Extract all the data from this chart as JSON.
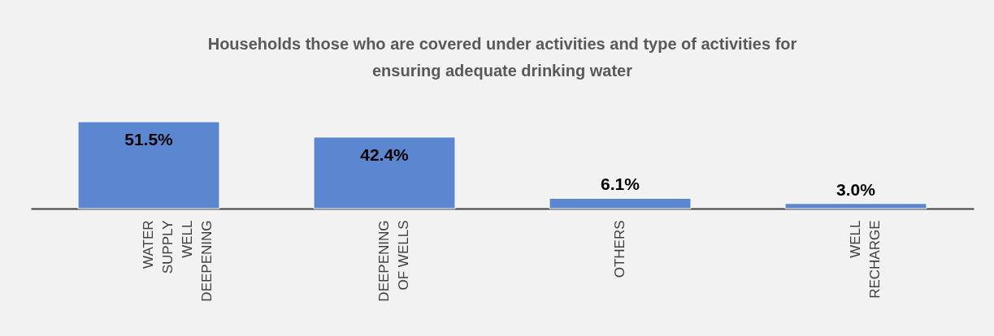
{
  "chart_data": {
    "type": "bar",
    "title": "Households those who are covered under activities and type of activities for ensuring adequate drinking water",
    "categories": [
      "WATER SUPPLY WELL DEEPENING",
      "DEEPENING OF WELLS",
      "OTHERS",
      "WELL RECHARGE"
    ],
    "values": [
      51.5,
      42.4,
      6.1,
      3.0
    ],
    "value_labels": [
      "51.5%",
      "42.4%",
      "6.1%",
      "3.0%"
    ],
    "color": "#5b87d0",
    "grid": false
  }
}
